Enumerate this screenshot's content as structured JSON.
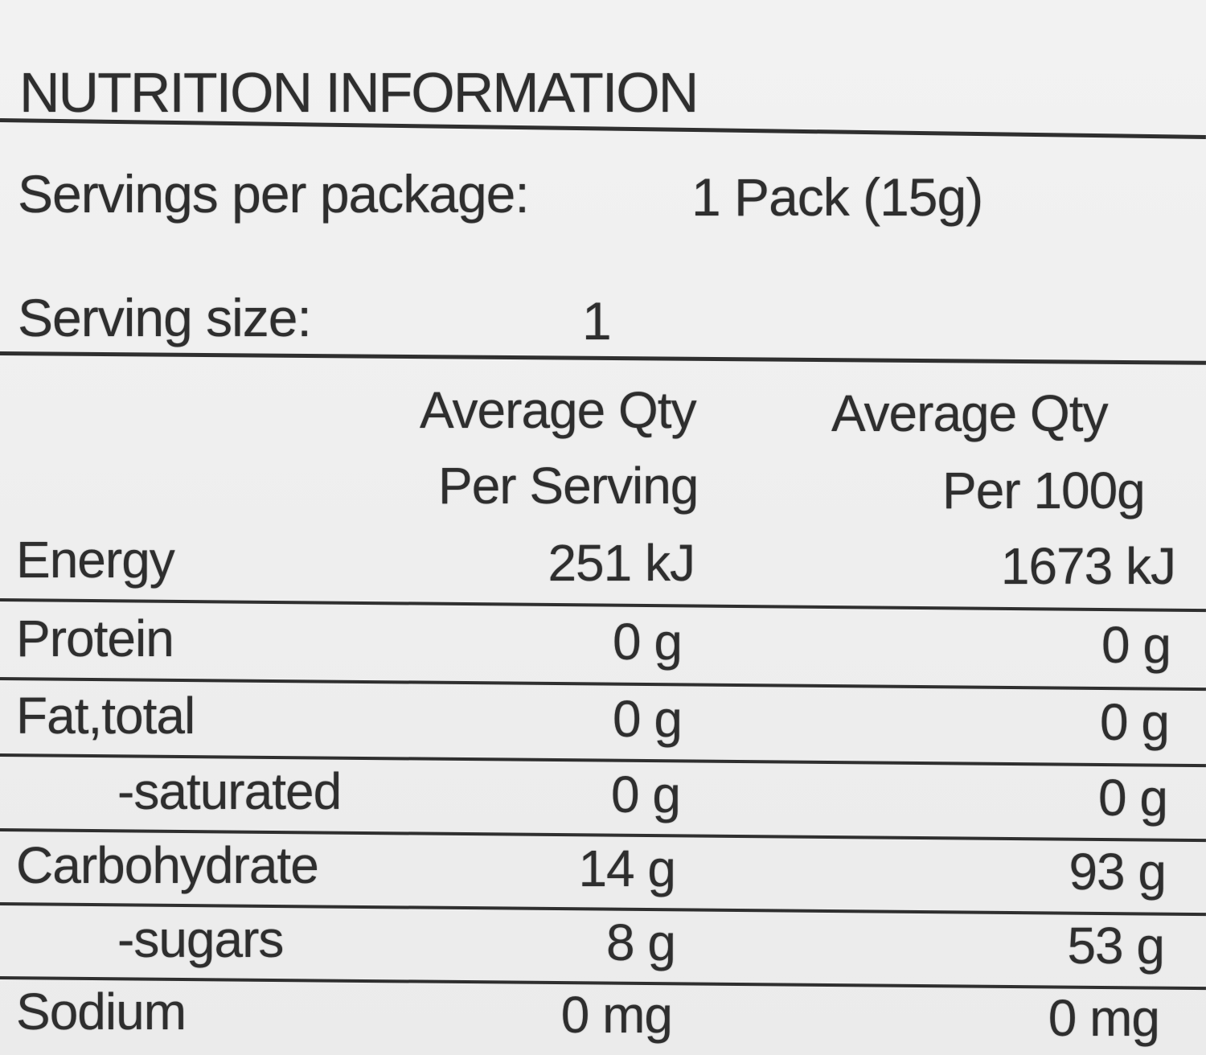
{
  "label": {
    "title": "NUTRITION INFORMATION",
    "servings_per_package_label": "Servings per package:",
    "servings_per_package_value": "1 Pack (15g)",
    "serving_size_label": "Serving size:",
    "serving_size_value": "1",
    "columns": {
      "per_serving_line1": "Average Qty",
      "per_serving_line2": "Per Serving",
      "per_100g_line1": "Average Qty",
      "per_100g_line2": "Per 100g"
    },
    "rows": [
      {
        "name": "Energy",
        "per_serving": "251 kJ",
        "per_100g": "1673 kJ"
      },
      {
        "name": "Protein",
        "per_serving": "0 g",
        "per_100g": "0 g"
      },
      {
        "name": "Fat,total",
        "per_serving": "0 g",
        "per_100g": "0 g"
      },
      {
        "name": "-saturated",
        "per_serving": "0 g",
        "per_100g": "0 g"
      },
      {
        "name": "Carbohydrate",
        "per_serving": "14 g",
        "per_100g": "93 g"
      },
      {
        "name": "-sugars",
        "per_serving": "8 g",
        "per_100g": "53 g"
      },
      {
        "name": "Sodium",
        "per_serving": "0 mg",
        "per_100g": "0 mg"
      }
    ]
  }
}
